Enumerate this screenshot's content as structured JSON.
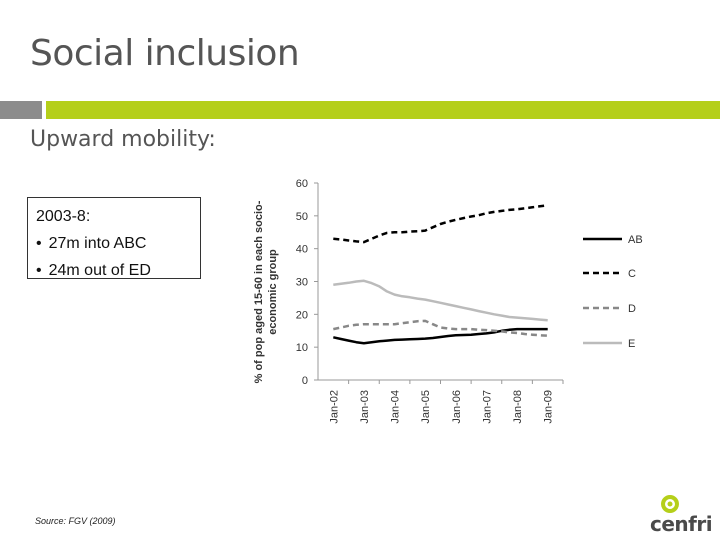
{
  "slide": {
    "title": "Social inclusion",
    "subtitle": "Upward mobility:",
    "box_heading": "2003-8:",
    "box_items": [
      "27m into ABC",
      "24m out of ED"
    ],
    "source": "Source: FGV (2009)",
    "logo_text": "cenfri"
  },
  "colors": {
    "accent": "#b5cf1a",
    "gray_bar": "#8c8c8c"
  },
  "chart_data": {
    "type": "line",
    "ylabel": "% of pop aged 15-60 in each socio-economic group",
    "ylabel_lines": [
      "% of pop aged 15-60 in each socio-",
      "economic group"
    ],
    "xlabel": "",
    "ylim": [
      0,
      60
    ],
    "yticks": [
      "0",
      "10",
      "20",
      "30",
      "40",
      "50",
      "60"
    ],
    "categories": [
      "Jan-02",
      "Jan-03",
      "Jan-04",
      "Jan-05",
      "Jan-06",
      "Jan-07",
      "Jan-08",
      "Jan-09"
    ],
    "x": [
      0,
      0.25,
      0.5,
      0.75,
      1,
      1.25,
      1.5,
      1.75,
      2,
      2.25,
      2.5,
      2.75,
      3,
      3.25,
      3.5,
      3.75,
      4,
      4.25,
      4.5,
      4.75,
      5,
      5.25,
      5.5,
      5.75,
      6,
      6.25,
      6.5,
      6.75,
      7
    ],
    "series": [
      {
        "name": "AB",
        "color": "#000000",
        "dash": "solid",
        "values": [
          13,
          12.5,
          12,
          11.5,
          11.2,
          11.5,
          11.8,
          12,
          12.2,
          12.3,
          12.4,
          12.5,
          12.6,
          12.8,
          13.1,
          13.4,
          13.6,
          13.7,
          13.8,
          14,
          14.2,
          14.5,
          15,
          15.3,
          15.5,
          15.5,
          15.5,
          15.5,
          15.5
        ]
      },
      {
        "name": "C",
        "color": "#000000",
        "dash": "dashed",
        "values": [
          43,
          42.8,
          42.5,
          42.2,
          42,
          43,
          44,
          44.8,
          45,
          45,
          45.2,
          45.3,
          45.5,
          46.5,
          47.5,
          48.2,
          48.8,
          49.3,
          49.8,
          50.2,
          50.8,
          51.2,
          51.5,
          51.8,
          52,
          52.3,
          52.6,
          52.9,
          53.2
        ]
      },
      {
        "name": "D",
        "color": "#888888",
        "dash": "dashed",
        "values": [
          15.5,
          16,
          16.5,
          16.8,
          17,
          17,
          17,
          17,
          17,
          17.3,
          17.6,
          17.9,
          18,
          17,
          16,
          15.7,
          15.5,
          15.5,
          15.5,
          15.3,
          15.2,
          15,
          14.8,
          14.5,
          14.3,
          14,
          13.8,
          13.6,
          13.5
        ]
      },
      {
        "name": "E",
        "color": "#bbbbbb",
        "dash": "solid",
        "values": [
          29,
          29.3,
          29.6,
          30,
          30.2,
          29.5,
          28.5,
          27,
          26,
          25.5,
          25.2,
          24.8,
          24.5,
          24,
          23.5,
          23,
          22.5,
          22,
          21.5,
          21,
          20.5,
          20,
          19.6,
          19.2,
          19,
          18.8,
          18.6,
          18.4,
          18.2
        ]
      }
    ],
    "grid": false,
    "legend_position": "right"
  }
}
